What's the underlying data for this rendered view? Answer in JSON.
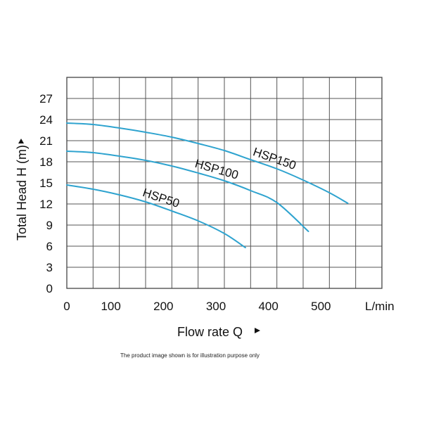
{
  "chart_data": {
    "type": "line",
    "xlabel": "Flow rate Q",
    "ylabel": "Total Head H (m)",
    "x_unit_label": "L/min",
    "xlim": [
      0,
      600
    ],
    "ylim": [
      0,
      30
    ],
    "x_ticks": [
      0,
      100,
      200,
      300,
      400,
      500
    ],
    "y_ticks": [
      0,
      3,
      6,
      9,
      12,
      15,
      18,
      21,
      24,
      27
    ],
    "grid": true,
    "series": [
      {
        "name": "HSP150",
        "x": [
          0,
          50,
          100,
          150,
          200,
          250,
          300,
          350,
          400,
          450,
          500,
          535
        ],
        "y": [
          23.5,
          23.3,
          22.8,
          22.2,
          21.5,
          20.6,
          19.6,
          18.3,
          17.0,
          15.4,
          13.6,
          12.1
        ]
      },
      {
        "name": "HSP100",
        "x": [
          0,
          50,
          100,
          150,
          200,
          250,
          300,
          350,
          400,
          460
        ],
        "y": [
          19.5,
          19.3,
          18.8,
          18.2,
          17.4,
          16.4,
          15.3,
          13.9,
          12.2,
          8.1
        ]
      },
      {
        "name": "HSP50",
        "x": [
          0,
          50,
          100,
          150,
          200,
          250,
          300,
          340
        ],
        "y": [
          14.7,
          14.1,
          13.3,
          12.3,
          11.0,
          9.6,
          7.8,
          5.8
        ]
      }
    ],
    "line_color": "#2ea3cf"
  },
  "footnote": "The product image shown is for illustration purpose only"
}
